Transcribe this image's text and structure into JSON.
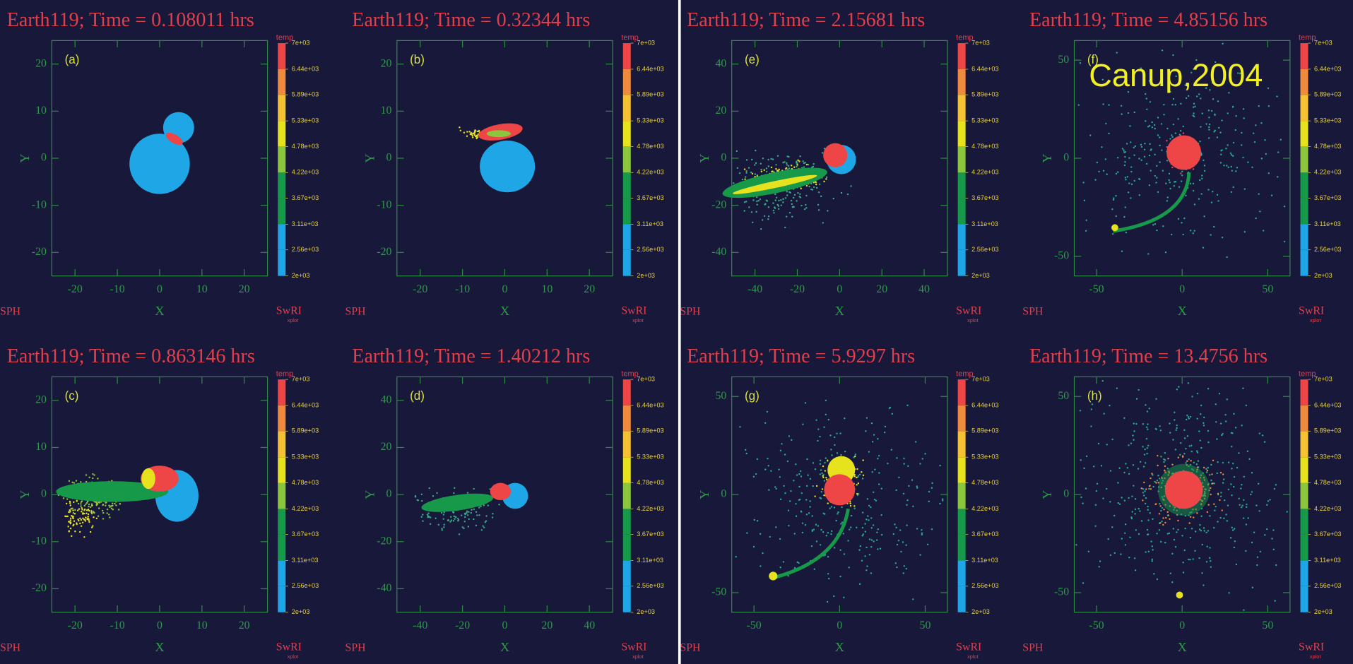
{
  "colorbar": {
    "title": "temp",
    "ticks": [
      {
        "value": 2000,
        "label": "2e+03"
      },
      {
        "value": 2560,
        "label": "2.56e+03"
      },
      {
        "value": 3110,
        "label": "3.11e+03"
      },
      {
        "value": 3670,
        "label": "3.67e+03"
      },
      {
        "value": 4220,
        "label": "4.22e+03"
      },
      {
        "value": 4780,
        "label": "4.78e+03"
      },
      {
        "value": 5330,
        "label": "5.33e+03"
      },
      {
        "value": 5890,
        "label": "5.89e+03"
      },
      {
        "value": 6440,
        "label": "6.44e+03"
      },
      {
        "value": 7000,
        "label": "7e+03"
      }
    ],
    "colors": [
      "#1ea6e6",
      "#1ea6e6",
      "#169a4a",
      "#169a4a",
      "#8cc63c",
      "#e6e21e",
      "#f4c232",
      "#f08a3c",
      "#ee4646"
    ]
  },
  "footer": {
    "left": "SPH",
    "right": "SwRI",
    "right_sub": "xplot"
  },
  "chart_data": [
    {
      "type": "scatter",
      "title": "Earth119; Time = 0.108011 hrs",
      "panel_label": "(a)",
      "xlabel": "X",
      "ylabel": "Y",
      "xlim": [
        -25.5,
        25.5
      ],
      "ylim": [
        -25,
        25
      ],
      "xticks": [
        -20,
        -10,
        0,
        10,
        20
      ],
      "yticks": [
        -20,
        -10,
        0,
        10,
        20
      ]
    },
    {
      "type": "scatter",
      "title": "Earth119; Time = 0.32344 hrs",
      "panel_label": "(b)",
      "xlabel": "X",
      "ylabel": "Y",
      "xlim": [
        -25.5,
        25.5
      ],
      "ylim": [
        -25,
        25
      ],
      "xticks": [
        -20,
        -10,
        0,
        10,
        20
      ],
      "yticks": [
        -20,
        -10,
        0,
        10,
        20
      ]
    },
    {
      "type": "scatter",
      "title": "Earth119; Time = 0.863146 hrs",
      "panel_label": "(c)",
      "xlabel": "X",
      "ylabel": "Y",
      "xlim": [
        -25.5,
        25.5
      ],
      "ylim": [
        -25,
        25
      ],
      "xticks": [
        -20,
        -10,
        0,
        10,
        20
      ],
      "yticks": [
        -20,
        -10,
        0,
        10,
        20
      ]
    },
    {
      "type": "scatter",
      "title": "Earth119; Time = 1.40212 hrs",
      "panel_label": "(d)",
      "xlabel": "X",
      "ylabel": "Y",
      "xlim": [
        -51,
        51
      ],
      "ylim": [
        -50,
        50
      ],
      "xticks": [
        -40,
        -20,
        0,
        20,
        40
      ],
      "yticks": [
        -40,
        -20,
        0,
        20,
        40
      ]
    },
    {
      "type": "scatter",
      "title": "Earth119; Time = 2.15681 hrs",
      "panel_label": "(e)",
      "xlabel": "X",
      "ylabel": "Y",
      "xlim": [
        -51,
        51
      ],
      "ylim": [
        -50,
        50
      ],
      "xticks": [
        -40,
        -20,
        0,
        20,
        40
      ],
      "yticks": [
        -40,
        -20,
        0,
        20,
        40
      ]
    },
    {
      "type": "scatter",
      "title": "Earth119; Time = 4.85156 hrs",
      "panel_label": "(f)",
      "xlabel": "X",
      "ylabel": "Y",
      "xlim": [
        -63,
        63
      ],
      "ylim": [
        -60,
        60
      ],
      "xticks": [
        -50,
        0,
        50
      ],
      "yticks": [
        -50,
        0,
        50
      ],
      "annotation": "Canup,2004"
    },
    {
      "type": "scatter",
      "title": "Earth119; Time = 5.9297 hrs",
      "panel_label": "(g)",
      "xlabel": "X",
      "ylabel": "Y",
      "xlim": [
        -63,
        63
      ],
      "ylim": [
        -60,
        60
      ],
      "xticks": [
        -50,
        0,
        50
      ],
      "yticks": [
        -50,
        0,
        50
      ]
    },
    {
      "type": "scatter",
      "title": "Earth119; Time = 13.4756 hrs",
      "panel_label": "(h)",
      "xlabel": "X",
      "ylabel": "Y",
      "xlim": [
        -63,
        63
      ],
      "ylim": [
        -60,
        60
      ],
      "xticks": [
        -50,
        0,
        50
      ],
      "yticks": [
        -50,
        0,
        50
      ]
    }
  ]
}
